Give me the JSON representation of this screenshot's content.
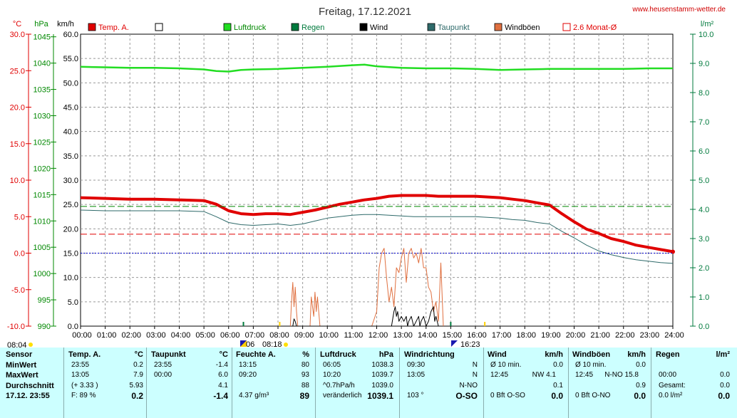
{
  "title": "Freitag, 17.12.2021",
  "website": "www.heusenstamm-wetter.de",
  "units": {
    "temp": "°C",
    "pressure": "hPa",
    "speed": "km/h",
    "rain": "l/m²"
  },
  "legend": [
    {
      "label": "Temp. A.",
      "color": "#e00000",
      "box": "filled"
    },
    {
      "label": "",
      "color": "#ffffff",
      "box": "outline"
    },
    {
      "label": "Luftdruck",
      "color": "#22dd22",
      "box": "filled"
    },
    {
      "label": "Regen",
      "color": "#007a3d",
      "box": "filled"
    },
    {
      "label": "Wind",
      "color": "#000000",
      "box": "filled"
    },
    {
      "label": "Taupunkt",
      "color": "#2e6a6a",
      "box": "filled"
    },
    {
      "label": "Windböen",
      "color": "#e07040",
      "box": "filled"
    },
    {
      "label": "2.6 Monat-Ø",
      "color": "#e00000",
      "box": "outline"
    }
  ],
  "time_markers": {
    "sunrise": "08:04",
    "sunset": "16:23",
    "moon1": "06",
    "moon2": "08:18"
  },
  "chart_data": {
    "type": "line",
    "x_ticks": [
      "00:00",
      "01:00",
      "02:00",
      "03:00",
      "04:00",
      "05:00",
      "06:00",
      "07:00",
      "08:00",
      "09:00",
      "10:00",
      "11:00",
      "12:00",
      "13:00",
      "14:00",
      "15:00",
      "16:00",
      "17:00",
      "18:00",
      "19:00",
      "20:00",
      "21:00",
      "22:00",
      "23:00",
      "24:00"
    ],
    "axes": {
      "temp": {
        "ticks": [
          "30.0",
          "25.0",
          "20.0",
          "15.0",
          "10.0",
          "5.0",
          "0.0",
          "-5.0",
          "-10.0"
        ],
        "range": [
          -10,
          30
        ],
        "color": "#e00000"
      },
      "pressure": {
        "ticks": [
          "1045",
          "1040",
          "1035",
          "1030",
          "1025",
          "1020",
          "1015",
          "1010",
          "1005",
          "1000",
          "995",
          "990"
        ],
        "range": [
          990,
          1045.5
        ],
        "color": "#008800"
      },
      "speed": {
        "ticks": [
          "60.0",
          "55.0",
          "50.0",
          "45.0",
          "40.0",
          "35.0",
          "30.0",
          "25.0",
          "20.0",
          "15.0",
          "10.0",
          "5.0",
          "0.0"
        ],
        "range": [
          0,
          60
        ],
        "color": "#000000"
      },
      "rain": {
        "ticks": [
          "10.0",
          "9.0",
          "8.0",
          "7.0",
          "6.0",
          "5.0",
          "4.0",
          "3.0",
          "2.0",
          "1.0",
          "0.0"
        ],
        "range": [
          0,
          10
        ],
        "color": "#007a3d"
      }
    },
    "series": [
      {
        "name": "Temp. A.",
        "axis": "temp",
        "color": "#e00000",
        "x": [
          0,
          1,
          2,
          3,
          4,
          5,
          5.5,
          6,
          6.5,
          7,
          7.5,
          8,
          8.5,
          9,
          9.5,
          10,
          10.5,
          11,
          11.5,
          12,
          12.5,
          13,
          13.5,
          14,
          14.5,
          15,
          15.5,
          16,
          16.5,
          17,
          17.5,
          18,
          18.5,
          19,
          19.5,
          20,
          20.5,
          21,
          21.5,
          22,
          22.5,
          23,
          23.5,
          24
        ],
        "y": [
          7.6,
          7.5,
          7.4,
          7.4,
          7.3,
          7.2,
          6.7,
          5.8,
          5.4,
          5.3,
          5.4,
          5.4,
          5.3,
          5.6,
          5.9,
          6.3,
          6.7,
          7.0,
          7.3,
          7.5,
          7.8,
          7.9,
          7.9,
          7.9,
          7.8,
          7.8,
          7.8,
          7.8,
          7.7,
          7.6,
          7.4,
          7.2,
          6.9,
          6.6,
          5.4,
          4.3,
          3.3,
          2.7,
          2.0,
          1.6,
          1.1,
          0.8,
          0.5,
          0.2
        ]
      },
      {
        "name": "Taupunkt",
        "axis": "temp",
        "color": "#2e6a6a",
        "x": [
          0,
          1,
          2,
          3,
          4,
          5,
          5.5,
          6,
          6.5,
          7,
          7.5,
          8,
          8.5,
          9,
          9.5,
          10,
          10.5,
          11,
          11.5,
          12,
          12.5,
          13,
          13.5,
          14,
          14.5,
          15,
          15.5,
          16,
          16.5,
          17,
          17.5,
          18,
          18.5,
          19,
          19.5,
          20,
          20.5,
          21,
          21.5,
          22,
          22.5,
          23,
          23.5,
          24
        ],
        "y": [
          5.9,
          5.8,
          5.8,
          5.8,
          5.8,
          5.7,
          5.0,
          4.2,
          3.9,
          3.8,
          3.9,
          4.0,
          3.8,
          4.0,
          4.4,
          4.8,
          5.0,
          5.2,
          5.3,
          5.3,
          5.2,
          5.1,
          5.0,
          5.0,
          5.0,
          5.0,
          5.0,
          5.0,
          4.9,
          4.8,
          4.6,
          4.5,
          4.2,
          4.0,
          3.0,
          2.1,
          1.1,
          0.3,
          -0.2,
          -0.6,
          -0.9,
          -1.1,
          -1.3,
          -1.4
        ]
      },
      {
        "name": "Luftdruck",
        "axis": "pressure",
        "color": "#22dd22",
        "x": [
          0,
          1,
          2,
          3,
          4,
          5,
          5.5,
          6,
          6.5,
          7,
          8,
          9,
          10,
          11,
          11.5,
          12,
          13,
          14,
          15,
          16,
          17,
          18,
          19,
          20,
          21,
          22,
          23,
          24
        ],
        "y": [
          1039.3,
          1039.2,
          1039.1,
          1039.1,
          1039.0,
          1038.8,
          1038.5,
          1038.4,
          1038.7,
          1038.8,
          1038.9,
          1039.1,
          1039.3,
          1039.6,
          1039.7,
          1039.4,
          1039.1,
          1039.0,
          1039.0,
          1038.9,
          1038.7,
          1038.8,
          1038.9,
          1038.9,
          1038.9,
          1038.9,
          1039.0,
          1039.0
        ]
      },
      {
        "name": "2.6 Monat-Ø",
        "axis": "temp",
        "color": "#e00000",
        "dashed": true,
        "x": [
          0,
          24
        ],
        "y": [
          2.6,
          2.6
        ]
      },
      {
        "name": "",
        "axis": "rain",
        "color": "#008800",
        "dashed": true,
        "x": [
          0,
          24
        ],
        "y": [
          4.1,
          4.1
        ]
      },
      {
        "name": "",
        "axis": "temp",
        "color": "#0000cc",
        "dotted": true,
        "x": [
          0,
          24
        ],
        "y": [
          0,
          0
        ]
      },
      {
        "name": "Windböen",
        "axis": "speed",
        "color": "#e07040",
        "x": [
          8.5,
          8.55,
          8.6,
          8.65,
          8.7,
          8.75,
          8.8,
          8.85,
          9.3,
          9.35,
          9.45,
          9.5,
          9.55,
          9.6,
          9.7,
          11.8,
          12.0,
          12.1,
          12.2,
          12.3,
          12.4,
          12.5,
          12.6,
          12.7,
          12.8,
          12.9,
          13.0,
          13.1,
          13.2,
          13.3,
          13.4,
          13.5,
          13.6,
          13.7,
          13.8,
          13.9,
          14.0,
          14.1,
          14.2,
          14.3,
          14.4,
          14.5,
          14.6,
          14.7
        ],
        "y": [
          0,
          5,
          9,
          4,
          8,
          3,
          0,
          0,
          0,
          6,
          2,
          7,
          3,
          6,
          0,
          0,
          3,
          12,
          15,
          16,
          10,
          5,
          8,
          4,
          12,
          11,
          14,
          16,
          9,
          15,
          16,
          14,
          15,
          13,
          16,
          12,
          12,
          8,
          7,
          3,
          5,
          1,
          13,
          0
        ]
      },
      {
        "name": "Wind",
        "axis": "speed",
        "color": "#000000",
        "x": [
          8.6,
          8.65,
          8.7,
          8.75,
          12.6,
          12.7,
          12.75,
          12.8,
          12.85,
          12.9,
          13.0,
          13.1,
          13.2,
          13.25,
          13.3,
          13.4,
          13.5,
          13.6,
          13.7,
          13.75,
          13.8,
          13.9,
          14.0,
          14.1,
          14.2,
          14.3,
          14.35,
          14.4,
          14.5
        ],
        "y": [
          0,
          1.5,
          1,
          0,
          0,
          3,
          4,
          2,
          3,
          1,
          2,
          1,
          2,
          0,
          1,
          2,
          0,
          1,
          2,
          0,
          1,
          2,
          0,
          1,
          3,
          4,
          1,
          2,
          0
        ]
      }
    ]
  },
  "table": {
    "sensor": {
      "header": "Sensor",
      "rows": [
        "MinWert",
        "MaxWert",
        "Durchschnitt",
        "17.12. 23:55"
      ]
    },
    "temp": {
      "header": "Temp. A.",
      "unit": "°C",
      "rows": [
        [
          "23:55",
          "0.2"
        ],
        [
          "13:05",
          "7.9"
        ],
        [
          "(+ 3.33 )",
          "5.93"
        ],
        [
          "F: 89 %",
          "0.2"
        ]
      ]
    },
    "dew": {
      "header": "Taupunkt",
      "unit": "°C",
      "rows": [
        [
          "23:55",
          "-1.4"
        ],
        [
          "00:00",
          "6.0"
        ],
        [
          "",
          "4.1"
        ],
        [
          "",
          "-1.4"
        ]
      ]
    },
    "humidity": {
      "header": "Feuchte A.",
      "unit": "%",
      "rows": [
        [
          "13:15",
          "80"
        ],
        [
          "09:20",
          "93"
        ],
        [
          "",
          "88"
        ],
        [
          "4.37 g/m³",
          "89"
        ]
      ]
    },
    "pressure": {
      "header": "Luftdruck",
      "unit": "hPa",
      "rows": [
        [
          "06:05",
          "1038.3"
        ],
        [
          "10:20",
          "1039.7"
        ],
        [
          "^0.7hPa/h",
          "1039.0"
        ],
        [
          "veränderlich",
          "1039.1"
        ]
      ]
    },
    "direction": {
      "header": "Windrichtung",
      "unit": "",
      "rows": [
        [
          "09:30",
          "N"
        ],
        [
          "13:05",
          "N"
        ],
        [
          "",
          "N-NO"
        ],
        [
          "103 °",
          "O-SO"
        ]
      ]
    },
    "wind": {
      "header": "Wind",
      "unit": "km/h",
      "rows": [
        [
          "Ø 10 min.",
          "",
          "0.0"
        ],
        [
          "12:45",
          "NW 4.1",
          ""
        ],
        [
          "",
          "",
          "0.1"
        ],
        [
          "0 Bft O-SO",
          "",
          "0.0"
        ]
      ]
    },
    "gust": {
      "header": "Windböen",
      "unit": "km/h",
      "rows": [
        [
          "Ø 10 min.",
          "",
          "0.0"
        ],
        [
          "12:45",
          "N-NO 15.8",
          ""
        ],
        [
          "",
          "",
          "0.9"
        ],
        [
          "0 Bft O-NO",
          "",
          "0.0"
        ]
      ]
    },
    "rain": {
      "header": "Regen",
      "unit": "l/m²",
      "rows": [
        [
          "",
          "",
          ""
        ],
        [
          "00:00",
          "",
          "0.0"
        ],
        [
          "Gesamt:",
          "",
          "0.0"
        ],
        [
          "0.0 l/m²",
          "",
          "0.0"
        ]
      ]
    }
  }
}
